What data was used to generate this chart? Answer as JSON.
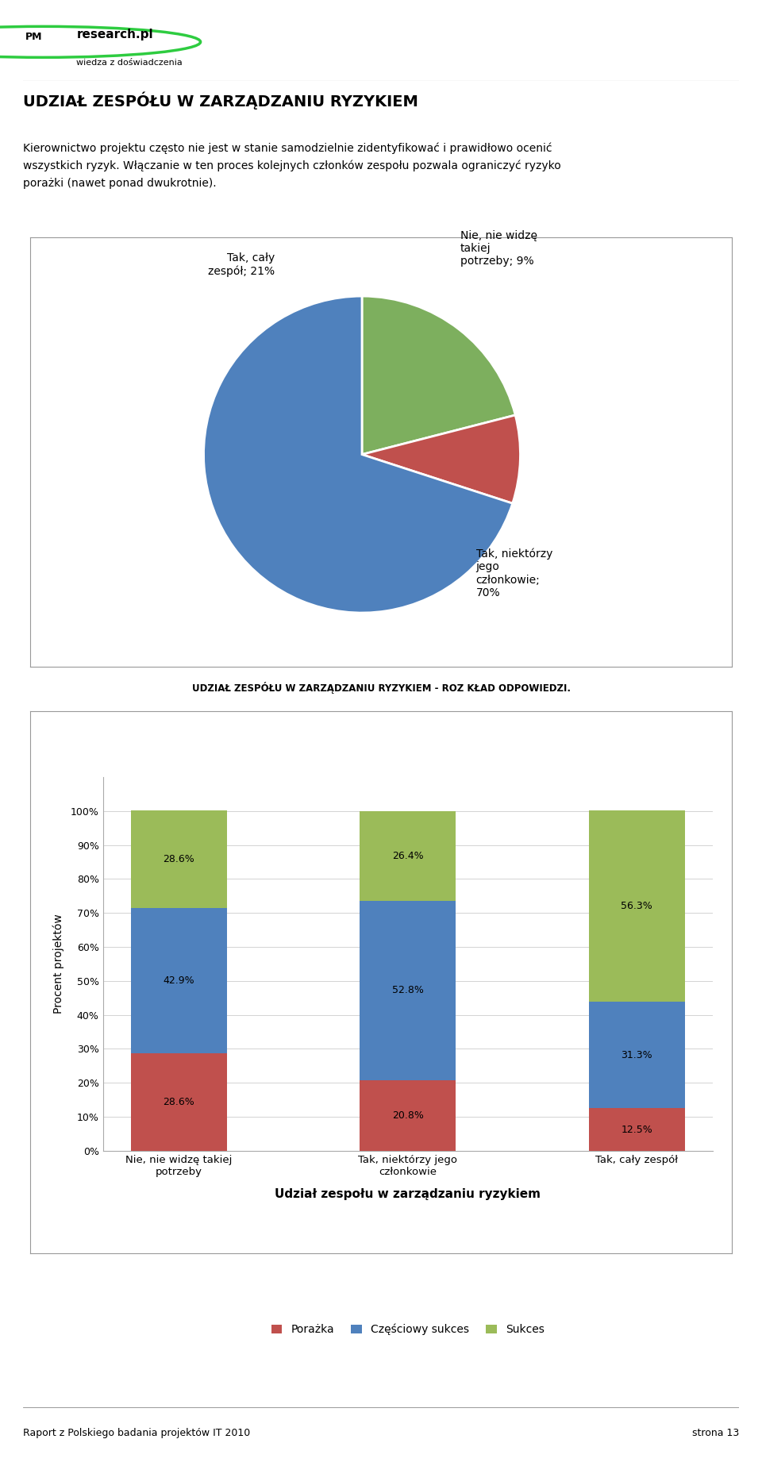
{
  "page_title": "UDZIAŁ ZESPÓŁU W ZARZĄDZANIU RYZYKIEM",
  "paragraph_line1": "Kierownictwo projektu często nie jest w stanie samodzielnie zidentyfikować i prawidłowo ocenić",
  "paragraph_line2": "wszystkich ryzyk. Włączanie w ten proces kolejnych członków zespołu pozwala ograniczyć ryzyko",
  "paragraph_line3": "porażki (nawet ponad dwukrotnie).",
  "pie_values": [
    21,
    9,
    70
  ],
  "pie_colors": [
    "#7daf5e",
    "#c0504d",
    "#4f81bd"
  ],
  "pie_label_0": "Tak, cały\nzespół; 21%",
  "pie_label_1": "Nie, nie widzę\ntakiej\npotrzeby; 9%",
  "pie_label_2": "Tak, niektórzy\njego\nczłonkowie;\n70%",
  "bar_chart_title": "UDZIAŁ ZESPÓŁU W ZARZĄDZANIU RYZYKIEM - ROZ KŁAD ODPOWIEDZI.",
  "bar_xlabel": "Udział zespołu w zarządzaniu ryzykiem",
  "bar_ylabel": "Procent projektów",
  "bar_categories": [
    "Nie, nie widzę takiej\npotrzeby",
    "Tak, niektórzy jego\nczłonkowie",
    "Tak, cały zespół"
  ],
  "bar_porazka": [
    28.6,
    20.8,
    12.5
  ],
  "bar_czesciowy": [
    42.9,
    52.8,
    31.3
  ],
  "bar_sukces": [
    28.6,
    26.4,
    56.3
  ],
  "bar_color_porazka": "#c0504d",
  "bar_color_czesciowy": "#4f81bd",
  "bar_color_sukces": "#9bbb59",
  "legend_porazka": "Porażka",
  "legend_czesciowy": "Częściowy sukces",
  "legend_sukces": "Sukces",
  "footer_left": "Raport z Polskiego badania projektów IT 2010",
  "footer_right": "strona 13"
}
